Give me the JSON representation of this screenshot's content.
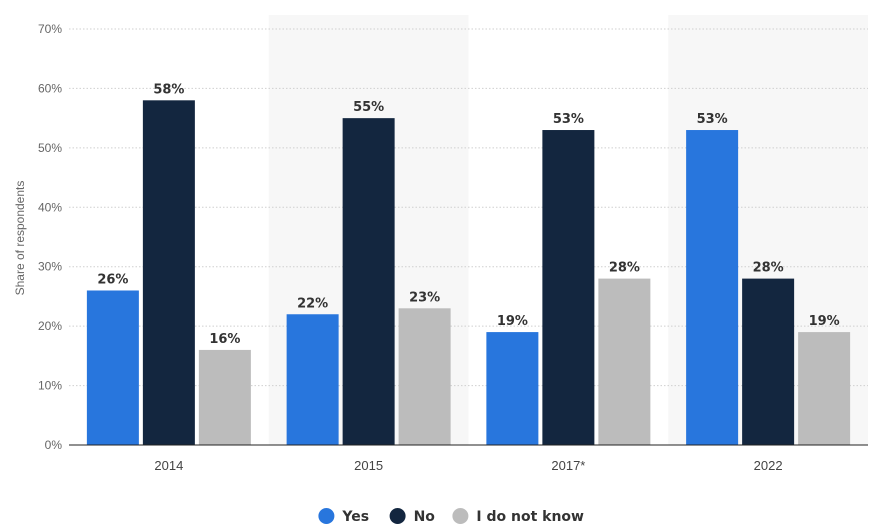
{
  "chart_data": {
    "type": "bar",
    "categories": [
      "2014",
      "2015",
      "2017*",
      "2022"
    ],
    "series": [
      {
        "name": "Yes",
        "values": [
          26,
          22,
          19,
          53
        ],
        "color": "#2876dd"
      },
      {
        "name": "No",
        "values": [
          58,
          55,
          53,
          28
        ],
        "color": "#13263f"
      },
      {
        "name": "I do not know",
        "values": [
          16,
          23,
          28,
          19
        ],
        "color": "#bcbcbc"
      }
    ],
    "ylabel": "Share of respondents",
    "ylim": [
      0,
      70
    ],
    "yticks": [
      "0%",
      "10%",
      "20%",
      "30%",
      "40%",
      "50%",
      "60%",
      "70%"
    ],
    "value_suffix": "%",
    "grid": true,
    "legend_position": "bottom-center"
  }
}
